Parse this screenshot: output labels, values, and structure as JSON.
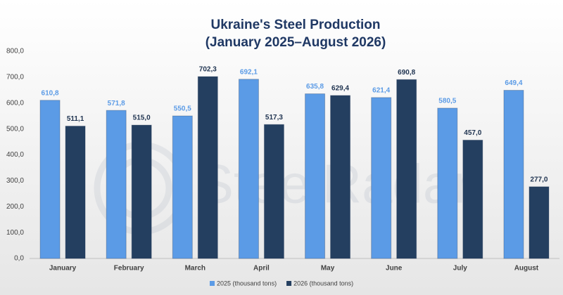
{
  "chart_data": {
    "type": "bar",
    "title": "Ukraine's Steel Production",
    "subtitle": "(January 2025–August 2026)",
    "watermark": "SteelRadar",
    "categories": [
      "January",
      "February",
      "March",
      "April",
      "May",
      "June",
      "July",
      "August"
    ],
    "series": [
      {
        "name": "2025 (thousand tons)",
        "color": "#5b9be6",
        "label_color": "#5b9be6",
        "values": [
          610.8,
          571.8,
          550.5,
          692.1,
          635.8,
          621.4,
          580.5,
          649.4
        ],
        "value_labels": [
          "610,8",
          "571,8",
          "550,5",
          "692,1",
          "635,8",
          "621,4",
          "580,5",
          "649,4"
        ]
      },
      {
        "name": "2026 (thousand tons)",
        "color": "#243f60",
        "label_color": "#1f3350",
        "values": [
          511.1,
          515.0,
          702.3,
          517.3,
          629.4,
          690.8,
          457.0,
          277.0
        ],
        "value_labels": [
          "511,1",
          "515,0",
          "702,3",
          "517,3",
          "629,4",
          "690,8",
          "457,0",
          "277,0"
        ]
      }
    ],
    "ylim": [
      0,
      800
    ],
    "yticks": [
      {
        "value": 0,
        "label": "0,0"
      },
      {
        "value": 100,
        "label": "100,0"
      },
      {
        "value": 200,
        "label": "200,0"
      },
      {
        "value": 300,
        "label": "300,0"
      },
      {
        "value": 400,
        "label": "400,0"
      },
      {
        "value": 500,
        "label": "500,0"
      },
      {
        "value": 600,
        "label": "600,0"
      },
      {
        "value": 700,
        "label": "700,0"
      },
      {
        "value": 800,
        "label": "800,0"
      }
    ],
    "grid": false,
    "legend": "bottom"
  }
}
